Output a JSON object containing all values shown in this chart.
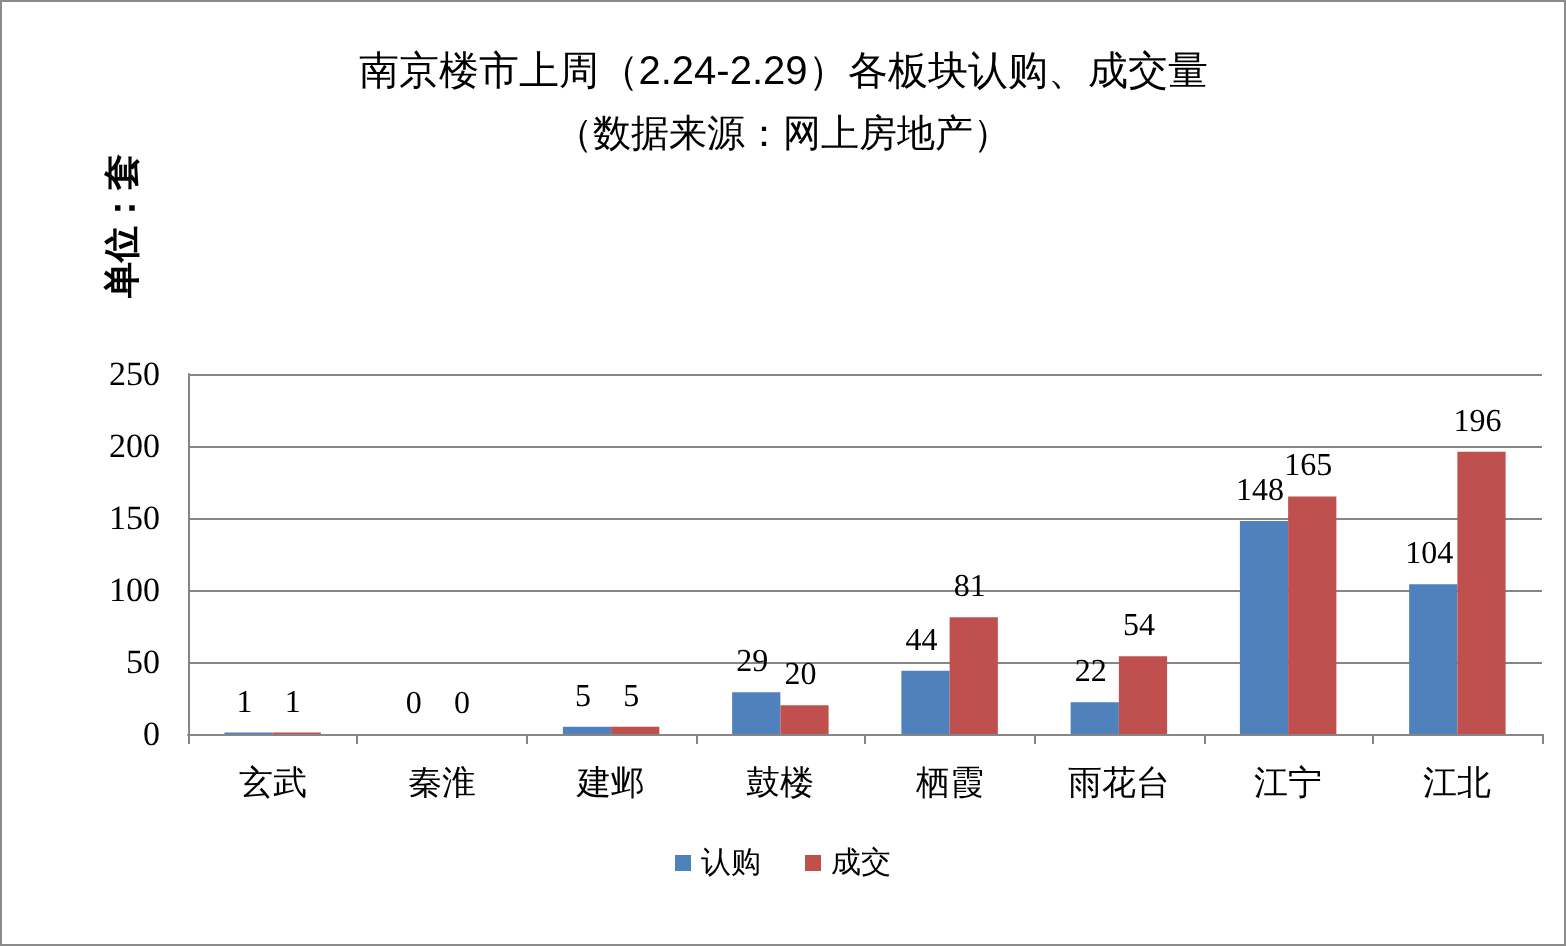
{
  "chart_data": {
    "type": "bar",
    "title": "南京楼市上周（2.24-2.29）各板块认购、成交量",
    "subtitle": "（数据来源：网上房地产）",
    "ylabel": "单位：套",
    "categories": [
      "玄武",
      "秦淮",
      "建邺",
      "鼓楼",
      "栖霞",
      "雨花台",
      "江宁",
      "江北"
    ],
    "series": [
      {
        "name": "认购",
        "color": "#4f81bd",
        "values": [
          1,
          0,
          5,
          29,
          44,
          22,
          148,
          104
        ]
      },
      {
        "name": "成交",
        "color": "#c0504d",
        "values": [
          1,
          0,
          5,
          20,
          81,
          54,
          165,
          196
        ]
      }
    ],
    "ylim": [
      0,
      250
    ],
    "yticks": [
      0,
      50,
      100,
      150,
      200,
      250
    ],
    "grid": "y",
    "legend": "bottom",
    "data_labels": true
  }
}
